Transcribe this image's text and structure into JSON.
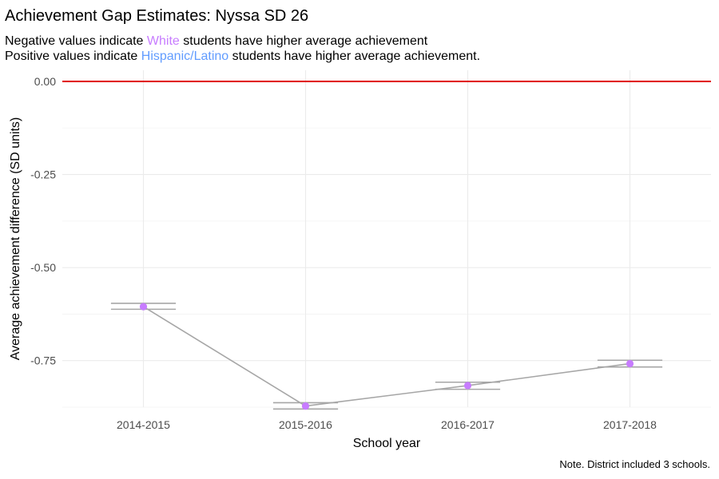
{
  "chart_data": {
    "type": "line",
    "title": "Achievement Gap Estimates: Nyssa SD 26",
    "subtitle_lines": [
      {
        "parts": [
          {
            "text": "Negative values indicate ",
            "highlight": false
          },
          {
            "text": "White",
            "highlight": true,
            "color": "#c77cff"
          },
          {
            "text": " students have higher average achievement",
            "highlight": false
          }
        ]
      },
      {
        "parts": [
          {
            "text": "Positive values indicate ",
            "highlight": false
          },
          {
            "text": "Hispanic/Latino",
            "highlight": true,
            "color": "#619cff"
          },
          {
            "text": " students have higher average achievement.",
            "highlight": false
          }
        ]
      }
    ],
    "xlabel": "School year",
    "ylabel": "Average achievement difference (SD units)",
    "caption": "Note. District included 3 schools.",
    "categories": [
      "2014-2015",
      "2015-2016",
      "2016-2017",
      "2017-2018"
    ],
    "series": [
      {
        "values": [
          -0.605,
          -0.872,
          -0.817,
          -0.758
        ],
        "error_low": [
          -0.612,
          -0.88,
          -0.827,
          -0.767
        ],
        "error_high": [
          -0.596,
          -0.863,
          -0.808,
          -0.749
        ],
        "point_color": "#c77cff",
        "line_color": "#a6a6a6"
      }
    ],
    "ylim": [
      -0.875,
      0.03
    ],
    "yticks": [
      0.0,
      -0.25,
      -0.5,
      -0.75
    ],
    "ytick_labels": [
      "0.00",
      "-0.25",
      "-0.50",
      "-0.75"
    ],
    "reference_line": {
      "y": 0.0,
      "color": "#e00000"
    },
    "grid": true,
    "legend": "none"
  }
}
